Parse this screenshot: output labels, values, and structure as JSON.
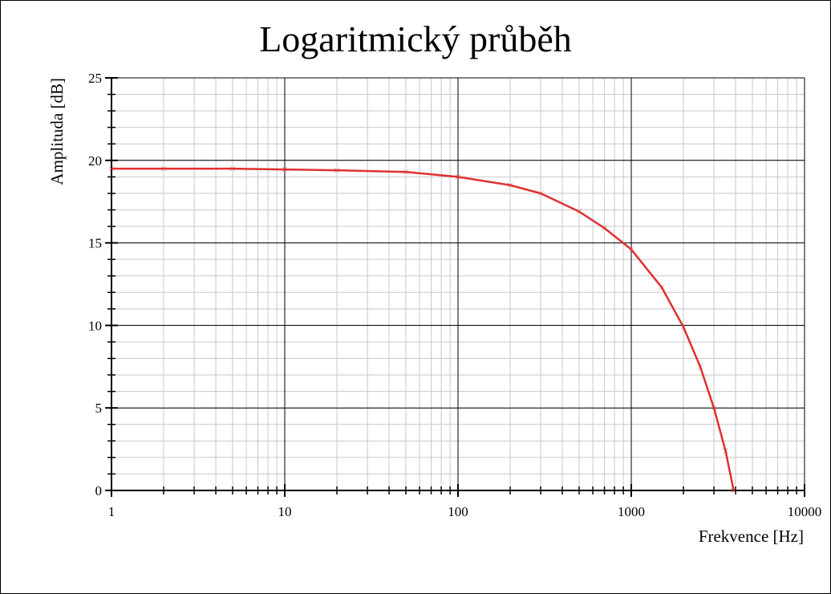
{
  "chart_data": {
    "type": "line",
    "title": "Logaritmický průběh",
    "x_label": "Frekvence [Hz]",
    "y_label": "Amplituda [dB]",
    "x": [
      1,
      2,
      5,
      10,
      20,
      50,
      100,
      200,
      300,
      500,
      700,
      1000,
      1500,
      2000,
      2500,
      3000,
      3500,
      3900
    ],
    "series": [
      {
        "name": "Amplituda",
        "color": "#e03030",
        "values": [
          19.5,
          19.5,
          19.5,
          19.45,
          19.4,
          19.3,
          19.0,
          18.5,
          18.0,
          16.9,
          15.9,
          14.6,
          12.3,
          9.9,
          7.5,
          5.0,
          2.4,
          0
        ]
      }
    ],
    "xlim": [
      1,
      10000
    ],
    "xticks": [
      1,
      10,
      100,
      1000,
      10000
    ],
    "x_log": true,
    "ylim": [
      0,
      25
    ],
    "yticks": [
      0,
      5,
      10,
      15,
      20,
      25
    ],
    "grid": true
  }
}
